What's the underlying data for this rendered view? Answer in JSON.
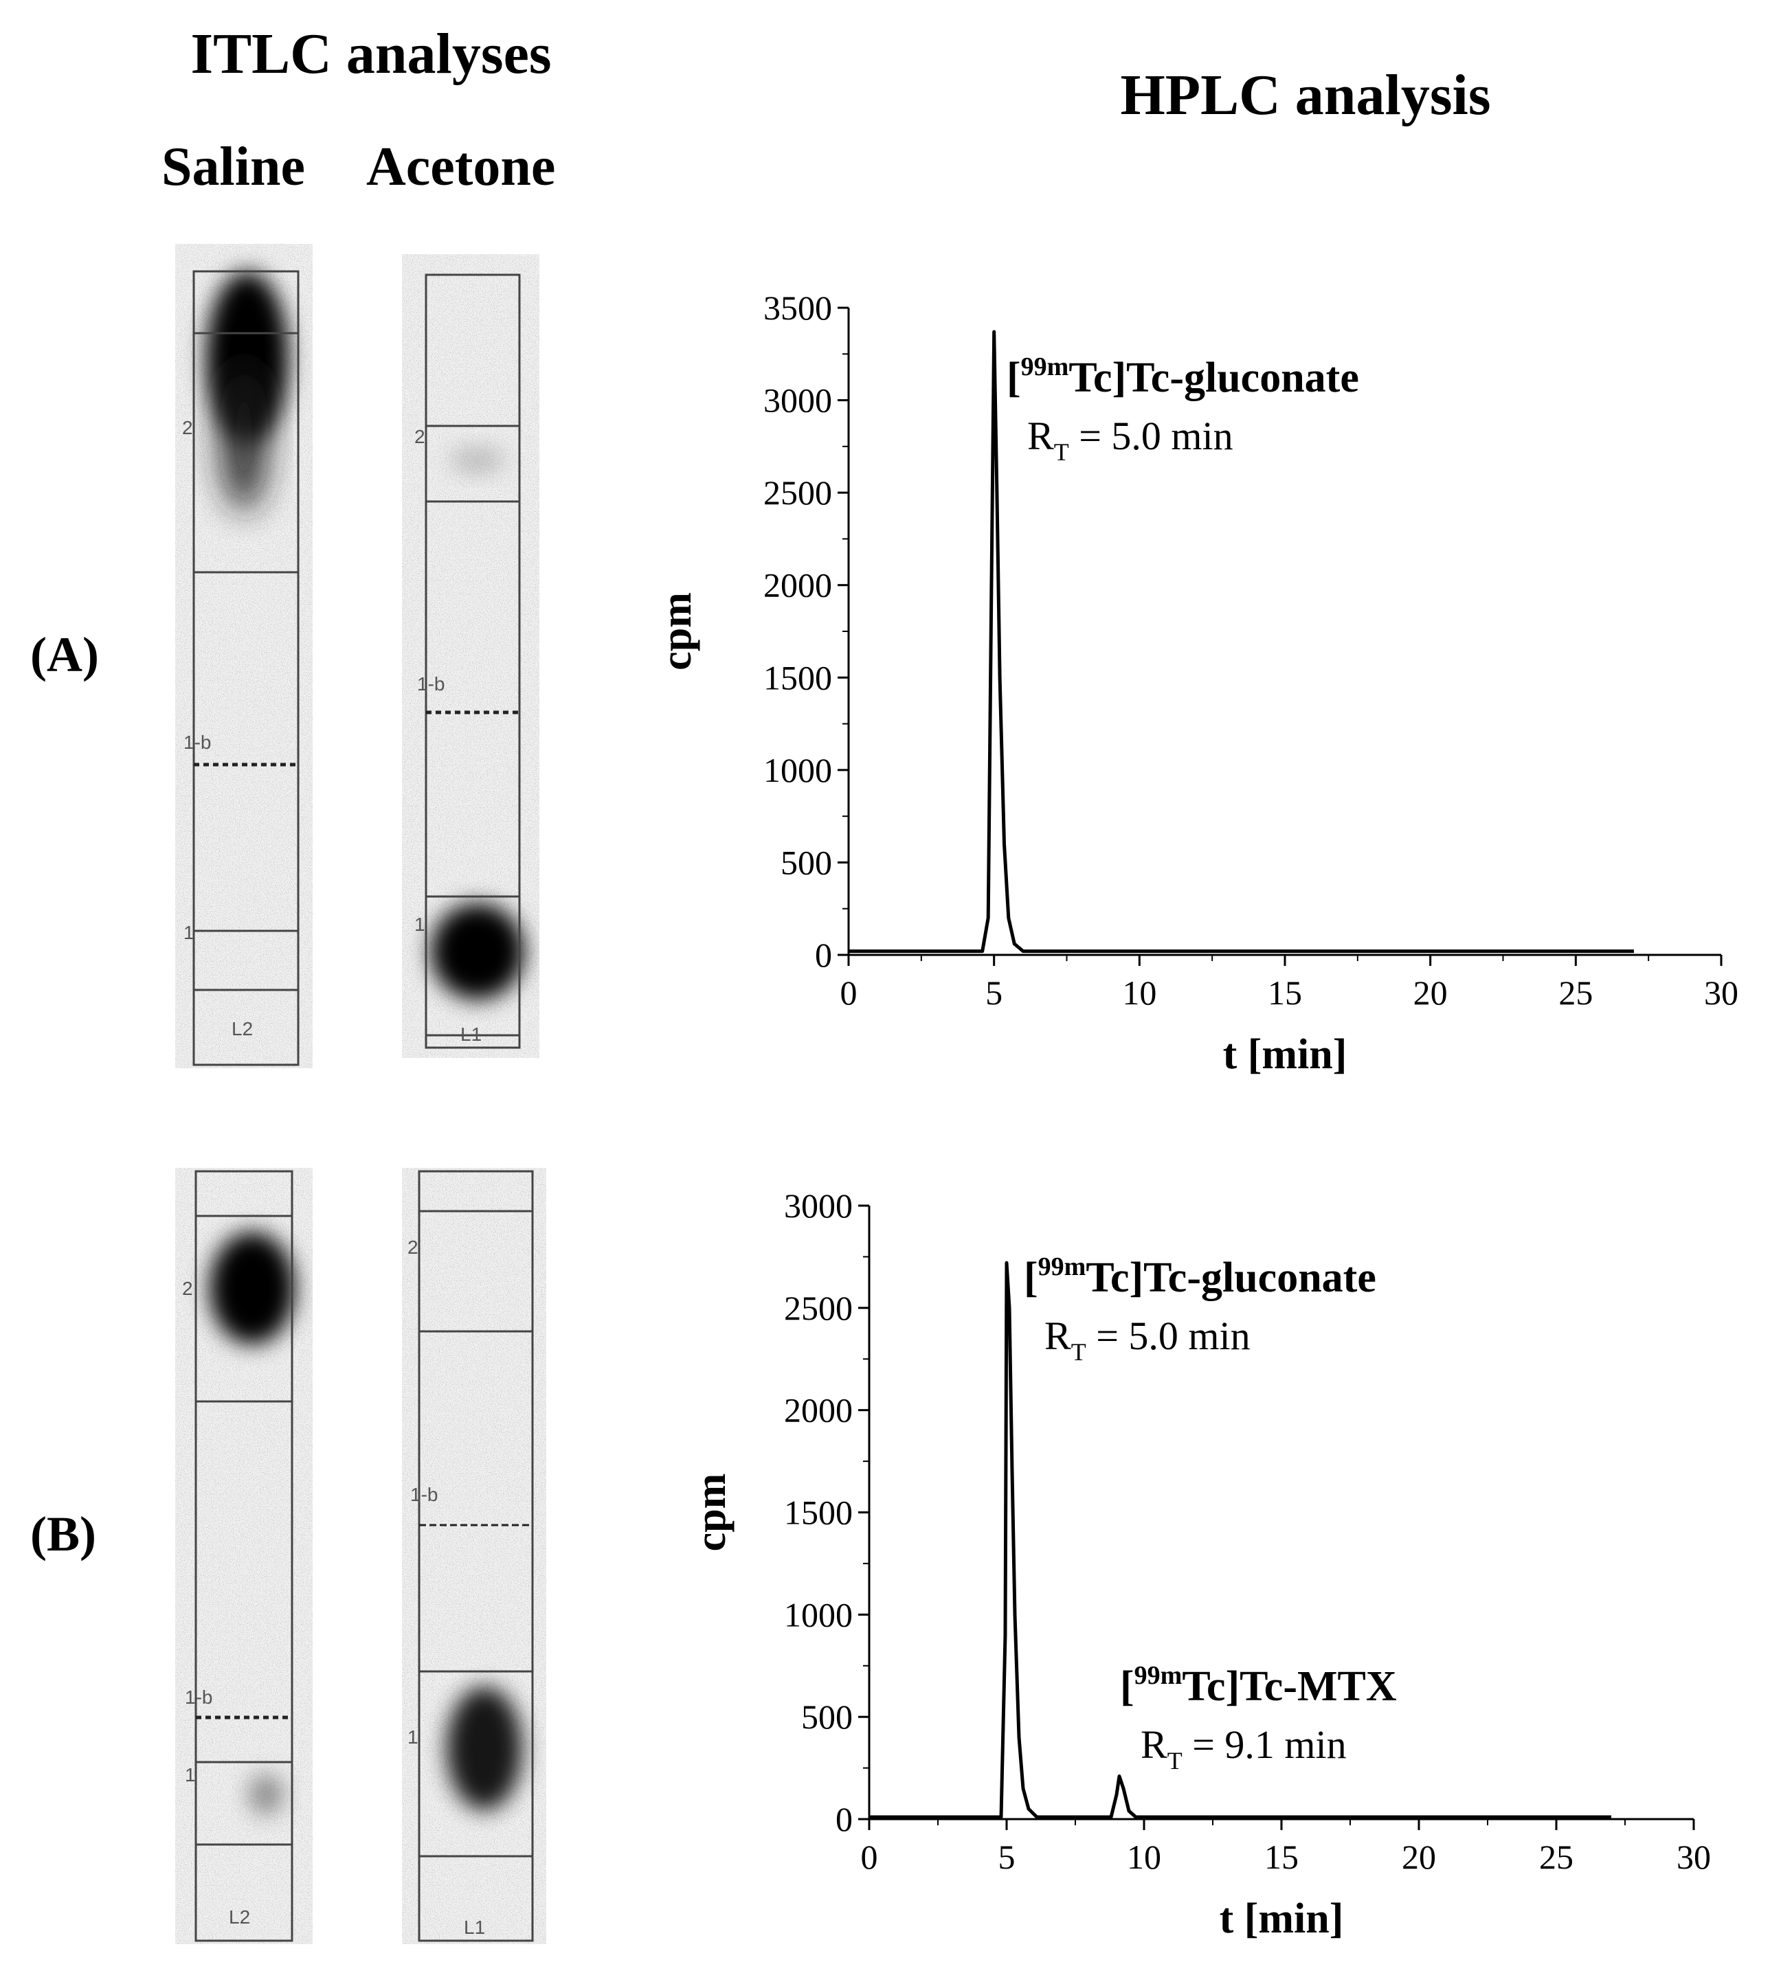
{
  "headers": {
    "itlc_title": "ITLC analyses",
    "hplc_title": "HPLC analysis",
    "saline": "Saline",
    "acetone": "Acetone",
    "row_a": "(A)",
    "row_b": "(B)"
  },
  "strips": [
    {
      "id": "a-saline",
      "origin_label": "1",
      "front_label": "2",
      "mid_label": "1-b",
      "bottom_label": "L2"
    },
    {
      "id": "a-acetone",
      "origin_label": "1",
      "front_label": "2",
      "mid_label": "1-b",
      "bottom_label": "L1"
    },
    {
      "id": "b-saline",
      "origin_label": "1",
      "front_label": "2",
      "mid_label": "1-b",
      "bottom_label": "L2"
    },
    {
      "id": "b-acetone",
      "origin_label": "1",
      "front_label": "2",
      "mid_label": "1-b",
      "bottom_label": "L1"
    }
  ],
  "chart_data": [
    {
      "type": "line",
      "panel": "(A)",
      "xlabel": "t [min]",
      "ylabel": "cpm",
      "xlim": [
        0,
        30
      ],
      "ylim": [
        0,
        3500
      ],
      "xticks": [
        0,
        5,
        10,
        15,
        20,
        25,
        30
      ],
      "yticks": [
        0,
        500,
        1000,
        1500,
        2000,
        2500,
        3000,
        3500
      ],
      "series": [
        {
          "x": [
            0,
            4.6,
            4.8,
            4.9,
            5.0,
            5.1,
            5.2,
            5.35,
            5.5,
            5.7,
            6.0,
            27
          ],
          "y": [
            20,
            20,
            200,
            1800,
            3370,
            2500,
            1500,
            600,
            200,
            60,
            20,
            20
          ]
        }
      ],
      "annotations": [
        {
          "name_pre": "[",
          "name_sup": "99m",
          "name_post": "Tc]Tc-gluconate",
          "rt_pre": "R",
          "rt_sub": "T",
          "rt_post": " = 5.0 min"
        }
      ]
    },
    {
      "type": "line",
      "panel": "(B)",
      "xlabel": "t [min]",
      "ylabel": "cpm",
      "xlim": [
        0,
        30
      ],
      "ylim": [
        0,
        3000
      ],
      "xticks": [
        0,
        5,
        10,
        15,
        20,
        25,
        30
      ],
      "yticks": [
        0,
        500,
        1000,
        1500,
        2000,
        2500,
        3000
      ],
      "series": [
        {
          "x": [
            0,
            4.8,
            4.95,
            5.0,
            5.1,
            5.2,
            5.3,
            5.45,
            5.6,
            5.8,
            6.1,
            8.8,
            9.0,
            9.1,
            9.25,
            9.45,
            9.7,
            27
          ],
          "y": [
            10,
            10,
            900,
            2720,
            2500,
            1700,
            1000,
            400,
            150,
            50,
            10,
            10,
            120,
            210,
            150,
            40,
            10,
            10
          ]
        }
      ],
      "annotations": [
        {
          "name_pre": "[",
          "name_sup": "99m",
          "name_post": "Tc]Tc-gluconate",
          "rt_pre": "R",
          "rt_sub": "T",
          "rt_post": " = 5.0 min"
        },
        {
          "name_pre": "[",
          "name_sup": "99m",
          "name_post": "Tc]Tc-MTX",
          "rt_pre": "R",
          "rt_sub": "T",
          "rt_post": " = 9.1 min"
        }
      ]
    }
  ]
}
